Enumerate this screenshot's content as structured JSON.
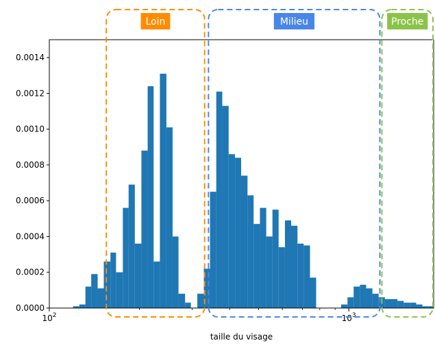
{
  "chart_data": {
    "type": "bar",
    "xlabel": "taille du visage",
    "ylabel": "",
    "x_scale": "log",
    "xlim": [
      100,
      1920
    ],
    "ylim": [
      0,
      0.0015
    ],
    "y_ticks": [
      {
        "value": 0.0,
        "label": "0.0000"
      },
      {
        "value": 0.0002,
        "label": "0.0002"
      },
      {
        "value": 0.0004,
        "label": "0.0004"
      },
      {
        "value": 0.0006,
        "label": "0.0006"
      },
      {
        "value": 0.0008,
        "label": "0.0008"
      },
      {
        "value": 0.001,
        "label": "0.0010"
      },
      {
        "value": 0.0012,
        "label": "0.0012"
      },
      {
        "value": 0.0014,
        "label": "0.0014"
      }
    ],
    "x_ticks": [
      {
        "value": 100,
        "base": "10",
        "exp": "2"
      },
      {
        "value": 1000,
        "base": "10",
        "exp": "3"
      }
    ],
    "color": "#1f77b4",
    "bar_left_edges": [
      120,
      126,
      132,
      138,
      145,
      152,
      160,
      167,
      176,
      184,
      193,
      203,
      213,
      223,
      234,
      246,
      258,
      270,
      284,
      297,
      312,
      328,
      344,
      361,
      378,
      397,
      417,
      437,
      459,
      481,
      505,
      530,
      556,
      583,
      612,
      642,
      674,
      707,
      742,
      778,
      817,
      857,
      899,
      943,
      990,
      1038,
      1089,
      1143,
      1199,
      1258,
      1320,
      1385,
      1453,
      1525,
      1600,
      1679,
      1761,
      1848
    ],
    "bar_right_edge": 1920,
    "values": [
      1e-05,
      2e-05,
      0.00012,
      0.00019,
      0.00011,
      0.00026,
      0.00031,
      0.0002,
      0.00056,
      0.00069,
      0.00036,
      0.00088,
      0.00124,
      0.00026,
      0.00131,
      0.00101,
      0.0004,
      8e-05,
      3e-05,
      0,
      8e-05,
      0.00022,
      0.00065,
      0.00121,
      0.00113,
      0.00086,
      0.00084,
      0.00074,
      0.00063,
      0.00047,
      0.00056,
      0.0004,
      0.00055,
      0.00034,
      0.00049,
      0.00046,
      0.00036,
      0.00035,
      0.00017,
      0,
      0,
      0,
      0,
      2e-05,
      6e-05,
      0.00012,
      0.00013,
      0.00011,
      8e-05,
      6e-05,
      5e-05,
      5e-05,
      4e-05,
      3e-05,
      3e-05,
      2e-05,
      1e-05,
      1e-05
    ],
    "regions": [
      {
        "label": "Loin",
        "color": "#ff8c00",
        "x_from": 155,
        "x_to": 330
      },
      {
        "label": "Milieu",
        "color": "#4a86e8",
        "x_from": 340,
        "x_to": 1270
      },
      {
        "label": "Proche",
        "color": "#8bc34a",
        "x_from": 1290,
        "x_to": 1920
      }
    ]
  }
}
